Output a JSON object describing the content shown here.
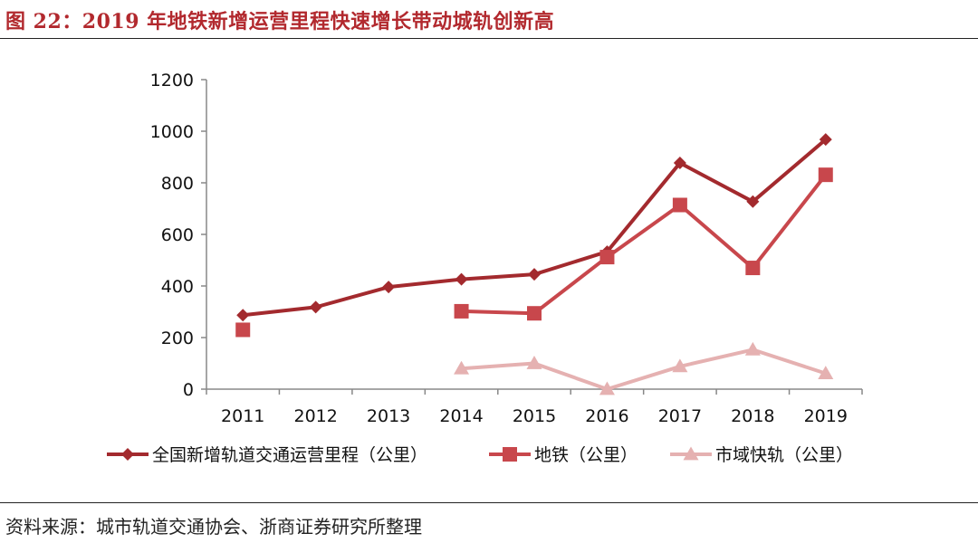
{
  "header": {
    "title": "图 22：2019 年地铁新增运营里程快速增长带动城轨创新高"
  },
  "footer": {
    "source": "资料来源：城市轨道交通协会、浙商证券研究所整理"
  },
  "colors": {
    "s1": "#a32a2e",
    "s2": "#c8474c",
    "s3": "#e5b1b1",
    "axis": "#888888",
    "rule": "#222222"
  },
  "chart_data": {
    "type": "line",
    "title": "",
    "xlabel": "",
    "ylabel": "",
    "ylim": [
      0,
      1200
    ],
    "yticks": [
      "0",
      "200",
      "400",
      "600",
      "800",
      "1000",
      "1200"
    ],
    "grid": false,
    "legend_position": "bottom",
    "categories": [
      "2011",
      "2012",
      "2013",
      "2014",
      "2015",
      "2016",
      "2017",
      "2018",
      "2019"
    ],
    "series": [
      {
        "name": "全国新增轨道交通运营里程（公里）",
        "marker": "diamond",
        "color": "#a32a2e",
        "values": [
          287,
          318,
          396,
          426,
          445,
          533,
          877,
          727,
          968
        ]
      },
      {
        "name": "地铁（公里）",
        "marker": "square",
        "color": "#c8474c",
        "values": [
          230,
          null,
          null,
          302,
          294,
          512,
          714,
          470,
          831
        ]
      },
      {
        "name": "市域快轨（公里）",
        "marker": "triangle",
        "color": "#e5b1b1",
        "values": [
          null,
          null,
          null,
          80,
          100,
          0,
          88,
          153,
          61
        ]
      }
    ]
  }
}
